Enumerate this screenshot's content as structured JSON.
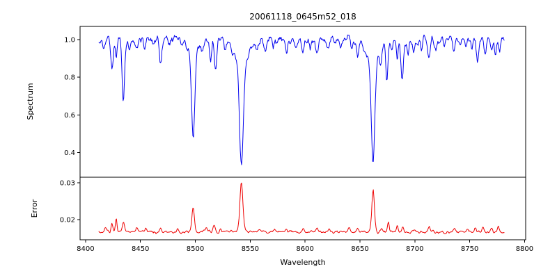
{
  "chart_data": {
    "type": "line",
    "title": "20061118_0645m52_018",
    "xlabel": "Wavelength",
    "xlim": [
      8395,
      8801
    ],
    "x_data_range": [
      8412,
      8782
    ],
    "xticks": [
      8400,
      8450,
      8500,
      8550,
      8600,
      8650,
      8700,
      8750,
      8800
    ],
    "xtick_labels": [
      "8400",
      "8450",
      "8500",
      "8550",
      "8600",
      "8650",
      "8700",
      "8750",
      "8800"
    ],
    "grid": false,
    "legend": "none",
    "panels": [
      {
        "name": "spectrum",
        "ylabel": "Spectrum",
        "color": "#0000ee",
        "ylim": [
          0.27,
          1.07
        ],
        "yticks": [
          0.4,
          0.6,
          0.8,
          1.0
        ],
        "ytick_labels": [
          "0.4",
          "0.6",
          "0.8",
          "1.0"
        ],
        "continuum": 1.0,
        "noise_amplitude": 0.07,
        "absorption_lines": [
          {
            "x": 8416.0,
            "d": 0.05,
            "w": 0.9
          },
          {
            "x": 8424.0,
            "d": 0.16,
            "w": 1.1
          },
          {
            "x": 8428.0,
            "d": 0.08,
            "w": 0.8
          },
          {
            "x": 8434.5,
            "d": 0.31,
            "w": 1.1
          },
          {
            "x": 8440.0,
            "d": 0.06,
            "w": 0.9
          },
          {
            "x": 8447.0,
            "d": 0.05,
            "w": 0.9
          },
          {
            "x": 8454.0,
            "d": 0.04,
            "w": 0.9
          },
          {
            "x": 8462.0,
            "d": 0.04,
            "w": 0.9
          },
          {
            "x": 8468.5,
            "d": 0.13,
            "w": 1.1
          },
          {
            "x": 8476.0,
            "d": 0.04,
            "w": 0.9
          },
          {
            "x": 8498.0,
            "d": 0.45,
            "w": 1.3,
            "wd": 0.09,
            "ww": 5
          },
          {
            "x": 8507.0,
            "d": 0.04,
            "w": 0.9
          },
          {
            "x": 8514.0,
            "d": 0.12,
            "w": 1.0
          },
          {
            "x": 8518.5,
            "d": 0.15,
            "w": 1.0
          },
          {
            "x": 8527.0,
            "d": 0.05,
            "w": 0.9
          },
          {
            "x": 8542.0,
            "d": 0.55,
            "w": 1.7,
            "wd": 0.13,
            "ww": 7
          },
          {
            "x": 8556.0,
            "d": 0.04,
            "w": 0.9
          },
          {
            "x": 8564.0,
            "d": 0.04,
            "w": 0.9
          },
          {
            "x": 8571.0,
            "d": 0.03,
            "w": 0.9
          },
          {
            "x": 8583.0,
            "d": 0.07,
            "w": 1.0
          },
          {
            "x": 8592.0,
            "d": 0.04,
            "w": 0.9
          },
          {
            "x": 8598.0,
            "d": 0.07,
            "w": 1.0
          },
          {
            "x": 8605.0,
            "d": 0.04,
            "w": 0.9
          },
          {
            "x": 8611.0,
            "d": 0.08,
            "w": 1.0
          },
          {
            "x": 8621.0,
            "d": 0.06,
            "w": 0.9
          },
          {
            "x": 8632.0,
            "d": 0.04,
            "w": 0.9
          },
          {
            "x": 8642.0,
            "d": 0.04,
            "w": 0.9
          },
          {
            "x": 8648.0,
            "d": 0.08,
            "w": 1.0
          },
          {
            "x": 8662.0,
            "d": 0.52,
            "w": 1.5,
            "wd": 0.13,
            "ww": 6
          },
          {
            "x": 8669.0,
            "d": 0.07,
            "w": 0.9
          },
          {
            "x": 8674.5,
            "d": 0.19,
            "w": 1.0
          },
          {
            "x": 8679.0,
            "d": 0.08,
            "w": 0.9
          },
          {
            "x": 8684.0,
            "d": 0.1,
            "w": 0.9
          },
          {
            "x": 8688.5,
            "d": 0.23,
            "w": 1.1
          },
          {
            "x": 8694.0,
            "d": 0.07,
            "w": 0.9
          },
          {
            "x": 8699.0,
            "d": 0.06,
            "w": 0.9
          },
          {
            "x": 8706.0,
            "d": 0.04,
            "w": 0.9
          },
          {
            "x": 8713.0,
            "d": 0.08,
            "w": 1.0
          },
          {
            "x": 8719.0,
            "d": 0.06,
            "w": 0.9
          },
          {
            "x": 8727.0,
            "d": 0.04,
            "w": 0.9
          },
          {
            "x": 8736.0,
            "d": 0.07,
            "w": 1.0
          },
          {
            "x": 8742.0,
            "d": 0.04,
            "w": 0.9
          },
          {
            "x": 8747.0,
            "d": 0.05,
            "w": 0.9
          },
          {
            "x": 8752.0,
            "d": 0.06,
            "w": 0.9
          },
          {
            "x": 8757.0,
            "d": 0.12,
            "w": 1.0
          },
          {
            "x": 8764.0,
            "d": 0.08,
            "w": 0.9
          },
          {
            "x": 8770.0,
            "d": 0.05,
            "w": 0.9
          },
          {
            "x": 8773.5,
            "d": 0.09,
            "w": 0.9
          },
          {
            "x": 8777.0,
            "d": 0.05,
            "w": 0.9
          }
        ]
      },
      {
        "name": "error",
        "ylabel": "Error",
        "color": "#ee0000",
        "ylim": [
          0.0145,
          0.0315
        ],
        "yticks": [
          0.02,
          0.03
        ],
        "ytick_labels": [
          "0.02",
          "0.03"
        ],
        "baseline": 0.01665,
        "noise_amplitude": 0.0012,
        "peaks": [
          {
            "x": 8418.0,
            "h": 0.0012,
            "w": 1.0
          },
          {
            "x": 8424.0,
            "h": 0.002,
            "w": 0.9
          },
          {
            "x": 8428.0,
            "h": 0.0038,
            "w": 0.7
          },
          {
            "x": 8434.5,
            "h": 0.0028,
            "w": 0.9
          },
          {
            "x": 8447.0,
            "h": 0.001,
            "w": 0.8
          },
          {
            "x": 8455.0,
            "h": 0.0008,
            "w": 0.8
          },
          {
            "x": 8468.5,
            "h": 0.0012,
            "w": 0.9
          },
          {
            "x": 8484.0,
            "h": 0.0007,
            "w": 0.8
          },
          {
            "x": 8498.0,
            "h": 0.0068,
            "w": 1.1
          },
          {
            "x": 8510.0,
            "h": 0.0012,
            "w": 0.8
          },
          {
            "x": 8517.0,
            "h": 0.0018,
            "w": 0.9
          },
          {
            "x": 8523.0,
            "h": 0.0012,
            "w": 0.8
          },
          {
            "x": 8542.0,
            "h": 0.0131,
            "w": 1.4
          },
          {
            "x": 8558.0,
            "h": 0.0007,
            "w": 0.8
          },
          {
            "x": 8572.0,
            "h": 0.0006,
            "w": 0.8
          },
          {
            "x": 8583.0,
            "h": 0.0007,
            "w": 0.8
          },
          {
            "x": 8598.0,
            "h": 0.0007,
            "w": 0.8
          },
          {
            "x": 8611.0,
            "h": 0.0013,
            "w": 0.9
          },
          {
            "x": 8622.0,
            "h": 0.0008,
            "w": 0.8
          },
          {
            "x": 8640.0,
            "h": 0.0008,
            "w": 0.8
          },
          {
            "x": 8648.0,
            "h": 0.0009,
            "w": 0.8
          },
          {
            "x": 8662.0,
            "h": 0.0113,
            "w": 1.2
          },
          {
            "x": 8670.0,
            "h": 0.001,
            "w": 0.8
          },
          {
            "x": 8676.0,
            "h": 0.0024,
            "w": 0.8
          },
          {
            "x": 8684.0,
            "h": 0.0018,
            "w": 0.8
          },
          {
            "x": 8689.0,
            "h": 0.0016,
            "w": 0.8
          },
          {
            "x": 8700.0,
            "h": 0.0008,
            "w": 0.8
          },
          {
            "x": 8713.0,
            "h": 0.0012,
            "w": 0.8
          },
          {
            "x": 8736.0,
            "h": 0.0009,
            "w": 0.8
          },
          {
            "x": 8748.0,
            "h": 0.0008,
            "w": 0.8
          },
          {
            "x": 8755.0,
            "h": 0.0013,
            "w": 0.8
          },
          {
            "x": 8762.0,
            "h": 0.0015,
            "w": 0.8
          },
          {
            "x": 8770.0,
            "h": 0.001,
            "w": 0.8
          },
          {
            "x": 8776.0,
            "h": 0.0013,
            "w": 0.8
          }
        ]
      }
    ]
  }
}
